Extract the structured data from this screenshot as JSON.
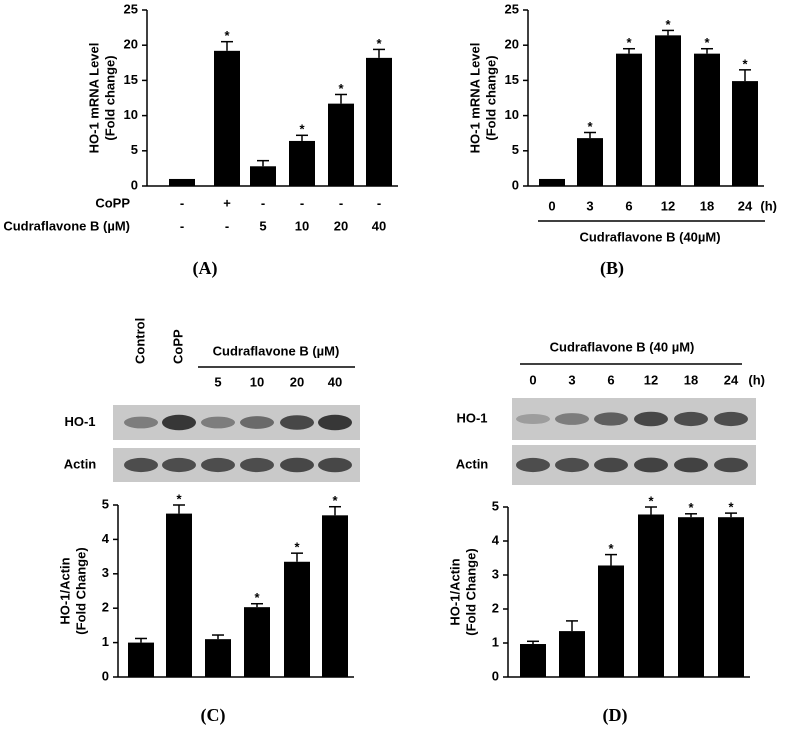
{
  "chart_data": [
    {
      "type": "bar",
      "panel": "(A)",
      "y_label": [
        "HO-1 mRNA Level",
        "(Fold change)"
      ],
      "category_rows": [
        {
          "label": "CoPP",
          "values": [
            "-",
            "+",
            "-",
            "-",
            "-",
            "-"
          ]
        },
        {
          "label": "Cudraflavone B (µM)",
          "values": [
            "-",
            "-",
            "5",
            "10",
            "20",
            "40"
          ]
        }
      ],
      "values": [
        1.0,
        19.2,
        2.8,
        6.4,
        11.7,
        18.2
      ],
      "errors": [
        0,
        1.3,
        0.8,
        0.8,
        1.3,
        1.2
      ],
      "markers": [
        null,
        "*",
        null,
        "*",
        "*",
        "*"
      ],
      "color": "#000000",
      "ylim": [
        0,
        25
      ],
      "yticks": [
        0,
        5,
        10,
        15,
        20,
        25
      ]
    },
    {
      "type": "bar",
      "panel": "(B)",
      "y_label": [
        "HO-1 mRNA Level",
        "(Fold change)"
      ],
      "categories": [
        "0",
        "3",
        "6",
        "12",
        "18",
        "24"
      ],
      "unit": "(h)",
      "group_label": "Cudraflavone B (40µM)",
      "values": [
        1.0,
        6.8,
        18.8,
        21.4,
        18.8,
        14.9
      ],
      "errors": [
        0,
        0.8,
        0.7,
        0.7,
        0.7,
        1.6
      ],
      "markers": [
        null,
        "*",
        "*",
        "*",
        "*",
        "*"
      ],
      "color": "#000000",
      "ylim": [
        0,
        25
      ],
      "yticks": [
        0,
        5,
        10,
        15,
        20,
        25
      ]
    },
    {
      "type": "bar",
      "panel": "(C)",
      "y_label": [
        "HO-1/Actin",
        "(Fold Change)"
      ],
      "categories": [
        "Control",
        "CoPP",
        "5",
        "10",
        "20",
        "40"
      ],
      "group_label": "Cudraflavone B (µM)",
      "blot_labels": [
        "HO-1",
        "Actin"
      ],
      "values": [
        1.0,
        4.75,
        1.1,
        2.03,
        3.35,
        4.7
      ],
      "errors": [
        0.12,
        0.25,
        0.12,
        0.1,
        0.25,
        0.25
      ],
      "markers": [
        null,
        "*",
        null,
        "*",
        "*",
        "*"
      ],
      "color": "#000000",
      "ylim": [
        0,
        5
      ],
      "yticks": [
        0,
        1,
        2,
        3,
        4,
        5
      ]
    },
    {
      "type": "bar",
      "panel": "(D)",
      "y_label": [
        "HO-1/Actin",
        "(Fold Change)"
      ],
      "categories": [
        "0",
        "3",
        "6",
        "12",
        "18",
        "24"
      ],
      "unit": "(h)",
      "group_label": "Cudraflavone B (40 µM)",
      "blot_labels": [
        "HO-1",
        "Actin"
      ],
      "values": [
        0.97,
        1.35,
        3.28,
        4.78,
        4.7,
        4.7
      ],
      "errors": [
        0.08,
        0.3,
        0.32,
        0.22,
        0.1,
        0.12
      ],
      "markers": [
        null,
        null,
        "*",
        "*",
        "*",
        "*"
      ],
      "color": "#000000",
      "ylim": [
        0,
        5
      ],
      "yticks": [
        0,
        1,
        2,
        3,
        4,
        5
      ]
    }
  ]
}
